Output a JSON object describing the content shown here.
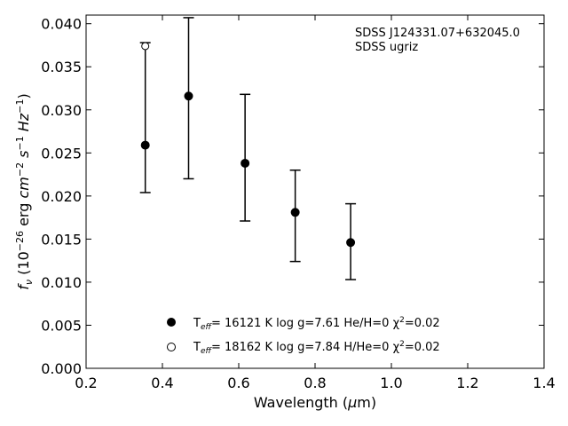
{
  "chart_data": {
    "type": "scatter",
    "xlim": [
      0.2,
      1.4
    ],
    "ylim": [
      0.0,
      0.041
    ],
    "x_ticks": [
      0.2,
      0.4,
      0.6,
      0.8,
      1.0,
      1.2,
      1.4
    ],
    "x_tick_labels": [
      "0.2",
      "0.4",
      "0.6",
      "0.8",
      "1.0",
      "1.2",
      "1.4"
    ],
    "y_ticks": [
      0.0,
      0.005,
      0.01,
      0.015,
      0.02,
      0.025,
      0.03,
      0.035,
      0.04
    ],
    "y_tick_labels": [
      "0.000",
      "0.005",
      "0.010",
      "0.015",
      "0.020",
      "0.025",
      "0.030",
      "0.035",
      "0.040"
    ],
    "xlabel": "Wavelength (μm)",
    "ylabel": "f_ν (10^-26 erg cm^-2 s^-1 Hz^-1)",
    "annotation": [
      "SDSS J124331.07+632045.0",
      "SDSS ugriz"
    ],
    "grid": false,
    "legend_position": "lower-center",
    "observed": {
      "x": [
        0.3551,
        0.4686,
        0.6166,
        0.748,
        0.8932
      ],
      "y": [
        0.0259,
        0.0316,
        0.0238,
        0.0181,
        0.0146
      ],
      "yerr_low": [
        0.0204,
        0.022,
        0.0171,
        0.0124,
        0.0103
      ],
      "yerr_high": [
        0.0378,
        0.0407,
        0.0318,
        0.023,
        0.0191
      ]
    },
    "series": [
      {
        "name": "T_eff= 16121 K  log g=7.61  He/H=0  χ²=0.02",
        "marker": "filled-circle",
        "x": [
          0.3551,
          0.4686,
          0.6166,
          0.748,
          0.8932
        ],
        "y": [
          0.0259,
          0.0316,
          0.0238,
          0.0181,
          0.0146
        ]
      },
      {
        "name": "T_eff= 18162 K  log g=7.84  H/He=0  χ²=0.02",
        "marker": "open-circle",
        "x": [
          0.3551
        ],
        "y": [
          0.0374
        ]
      }
    ]
  }
}
